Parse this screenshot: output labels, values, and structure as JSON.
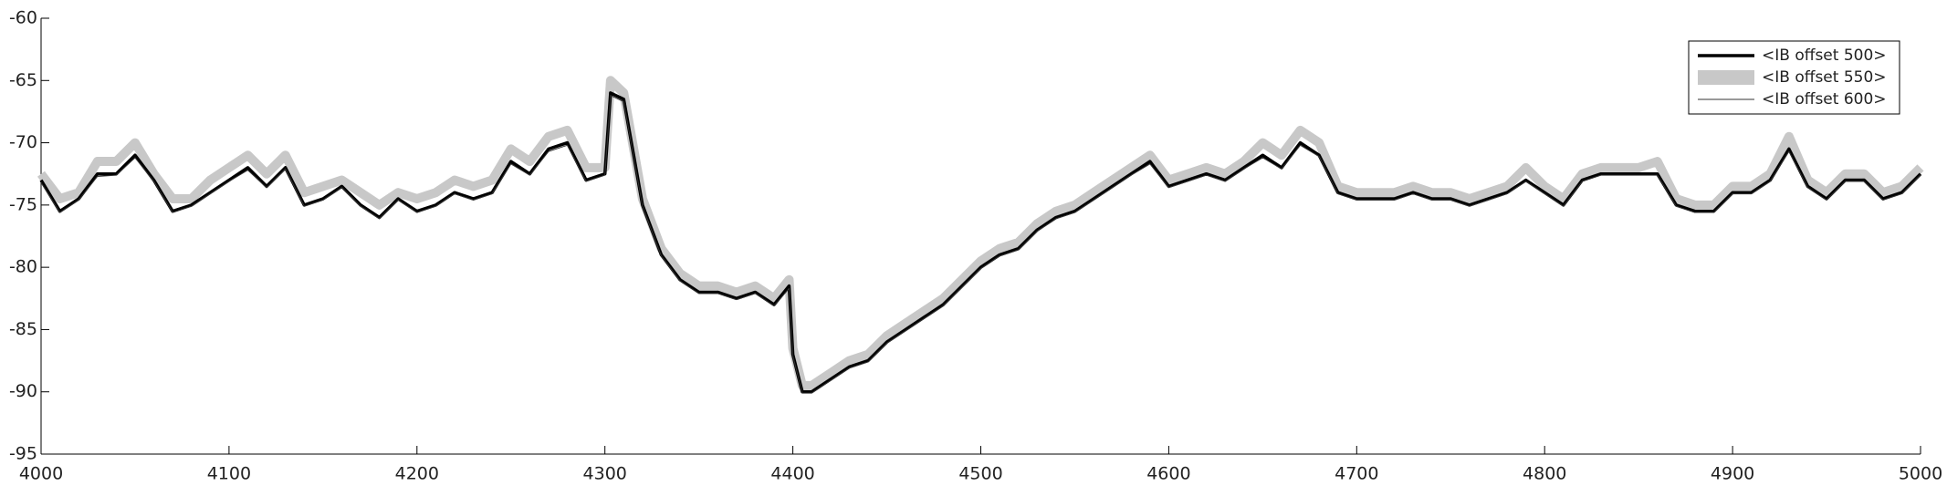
{
  "chart_data": {
    "type": "line",
    "x": [
      4000,
      4010,
      4020,
      4030,
      4040,
      4050,
      4060,
      4070,
      4080,
      4090,
      4100,
      4110,
      4120,
      4130,
      4140,
      4150,
      4160,
      4170,
      4180,
      4190,
      4200,
      4210,
      4220,
      4230,
      4240,
      4250,
      4260,
      4270,
      4280,
      4290,
      4300,
      4303,
      4310,
      4320,
      4330,
      4340,
      4350,
      4360,
      4370,
      4380,
      4390,
      4398,
      4400,
      4405,
      4410,
      4420,
      4430,
      4440,
      4450,
      4460,
      4470,
      4480,
      4490,
      4500,
      4510,
      4520,
      4530,
      4540,
      4550,
      4560,
      4570,
      4580,
      4590,
      4600,
      4610,
      4620,
      4630,
      4640,
      4650,
      4660,
      4670,
      4680,
      4690,
      4700,
      4710,
      4720,
      4730,
      4740,
      4750,
      4760,
      4770,
      4780,
      4790,
      4800,
      4810,
      4820,
      4830,
      4840,
      4850,
      4860,
      4870,
      4880,
      4890,
      4900,
      4910,
      4920,
      4930,
      4940,
      4950,
      4960,
      4970,
      4980,
      4990,
      5000
    ],
    "series": [
      {
        "name": "<IB offset 550>",
        "color": "#c8c8c8",
        "linewidth": 10,
        "values": [
          -72.5,
          -74.5,
          -74,
          -71.5,
          -71.5,
          -70,
          -72.5,
          -74.5,
          -74.5,
          -73,
          -72,
          -71,
          -72.5,
          -71,
          -74,
          -73.5,
          -73,
          -74,
          -75,
          -74,
          -74.5,
          -74,
          -73,
          -73.5,
          -73,
          -70.5,
          -71.5,
          -69.5,
          -69,
          -72,
          -72,
          -65,
          -66,
          -74.5,
          -78.5,
          -80.5,
          -81.5,
          -81.5,
          -82,
          -81.5,
          -82.5,
          -81,
          -86.5,
          -89.5,
          -89.5,
          -88.5,
          -87.5,
          -87,
          -85.5,
          -84.5,
          -83.5,
          -82.5,
          -81,
          -79.5,
          -78.5,
          -78,
          -76.5,
          -75.5,
          -75,
          -74,
          -73,
          -72,
          -71,
          -73,
          -72.5,
          -72,
          -72.5,
          -71.5,
          -70,
          -71,
          -69,
          -70,
          -73.5,
          -74,
          -74,
          -74,
          -73.5,
          -74,
          -74,
          -74.5,
          -74,
          -73.5,
          -72,
          -73.5,
          -74.5,
          -72.5,
          -72,
          -72,
          -72,
          -71.5,
          -74.5,
          -75,
          -75,
          -73.5,
          -73.5,
          -72.5,
          -69.5,
          -73,
          -74,
          -72.5,
          -72.5,
          -74,
          -73.5,
          -72
        ]
      },
      {
        "name": "<IB offset 500>",
        "color": "#000000",
        "linewidth": 3.5,
        "values": [
          -73,
          -75.5,
          -74.5,
          -72.5,
          -72.5,
          -71,
          -73,
          -75.5,
          -75,
          -74,
          -73,
          -72,
          -73.5,
          -72,
          -75,
          -74.5,
          -73.5,
          -75,
          -76,
          -74.5,
          -75.5,
          -75,
          -74,
          -74.5,
          -74,
          -71.5,
          -72.5,
          -70.5,
          -70,
          -73,
          -72.5,
          -66,
          -66.5,
          -75,
          -79,
          -81,
          -82,
          -82,
          -82.5,
          -82,
          -83,
          -81.5,
          -87,
          -90,
          -90,
          -89,
          -88,
          -87.5,
          -86,
          -85,
          -84,
          -83,
          -81.5,
          -80,
          -79,
          -78.5,
          -77,
          -76,
          -75.5,
          -74.5,
          -73.5,
          -72.5,
          -71.5,
          -73.5,
          -73,
          -72.5,
          -73,
          -72,
          -71,
          -72,
          -70,
          -71,
          -74,
          -74.5,
          -74.5,
          -74.5,
          -74,
          -74.5,
          -74.5,
          -75,
          -74.5,
          -74,
          -73,
          -74,
          -75,
          -73,
          -72.5,
          -72.5,
          -72.5,
          -72.5,
          -75,
          -75.5,
          -75.5,
          -74,
          -74,
          -73,
          -70.5,
          -73.5,
          -74.5,
          -73,
          -73,
          -74.5,
          -74,
          -72.5
        ]
      },
      {
        "name": "<IB offset 600>",
        "color": "#333333",
        "linewidth": 1,
        "values": [
          -73.2,
          -75.6,
          -74.6,
          -72.7,
          -72.6,
          -71.2,
          -73.1,
          -75.6,
          -75.1,
          -74.1,
          -73.1,
          -72.2,
          -73.6,
          -72.1,
          -75.1,
          -74.6,
          -73.6,
          -75.1,
          -76.1,
          -74.6,
          -75.6,
          -75.1,
          -74.1,
          -74.6,
          -74.1,
          -71.7,
          -72.6,
          -70.7,
          -70.2,
          -73.1,
          -72.6,
          -66.2,
          -66.7,
          -75.1,
          -79.1,
          -81.1,
          -82.1,
          -82.1,
          -82.6,
          -82.1,
          -83.1,
          -81.7,
          -87.1,
          -90.1,
          -90.1,
          -89.1,
          -88.1,
          -87.6,
          -86.1,
          -85.1,
          -84.1,
          -83.1,
          -81.6,
          -80.1,
          -79.1,
          -78.6,
          -77.1,
          -76.1,
          -75.6,
          -74.6,
          -73.6,
          -72.6,
          -71.7,
          -73.6,
          -73.1,
          -72.6,
          -73.1,
          -72.1,
          -71.2,
          -72.1,
          -70.2,
          -71.1,
          -74.1,
          -74.6,
          -74.6,
          -74.6,
          -74.1,
          -74.6,
          -74.6,
          -75.1,
          -74.6,
          -74.1,
          -73.1,
          -74.1,
          -75.1,
          -73.1,
          -72.6,
          -72.6,
          -72.6,
          -72.6,
          -75.1,
          -75.6,
          -75.6,
          -74.1,
          -74.1,
          -73.1,
          -70.7,
          -73.6,
          -74.6,
          -73.1,
          -73.1,
          -74.6,
          -74.1,
          -72.6
        ]
      }
    ],
    "legend_order": [
      1,
      0,
      2
    ],
    "xlim": [
      4000,
      5000
    ],
    "xticks": [
      4000,
      4100,
      4200,
      4300,
      4400,
      4500,
      4600,
      4700,
      4800,
      4900,
      5000
    ],
    "ylim": [
      -95,
      -60
    ],
    "yticks": [
      -95,
      -90,
      -85,
      -80,
      -75,
      -70,
      -65,
      -60
    ],
    "grid": false,
    "legend": "upper right"
  }
}
